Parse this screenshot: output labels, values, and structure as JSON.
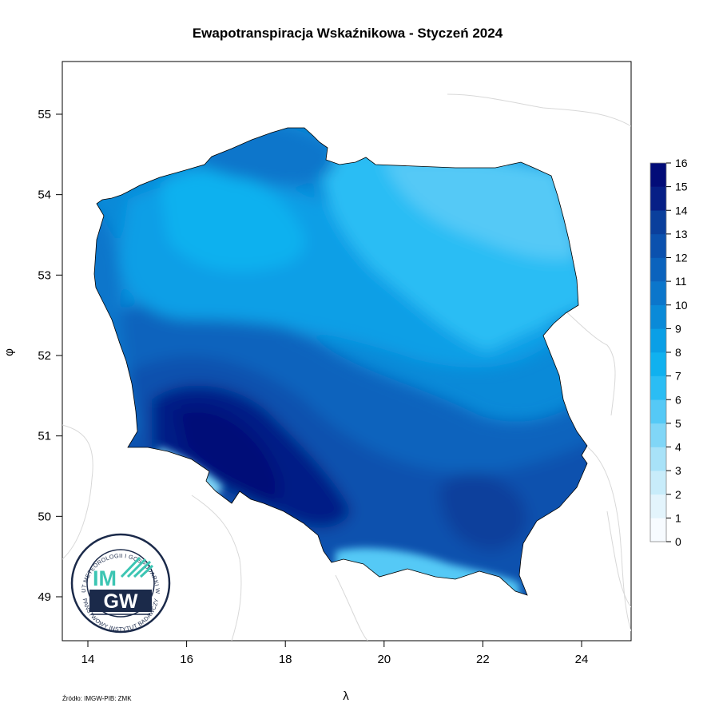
{
  "title": "Ewapotranspiracja Wskaźnikowa - Styczeń 2024",
  "source_note": "Źródło: IMGW-PIB: ZMK",
  "axes": {
    "xlabel": "λ",
    "ylabel": "φ",
    "x_ticks": [
      "14",
      "16",
      "18",
      "20",
      "22",
      "24"
    ],
    "y_ticks": [
      "49",
      "50",
      "51",
      "52",
      "53",
      "54",
      "55"
    ]
  },
  "legend": {
    "ticks": [
      "0",
      "1",
      "2",
      "3",
      "4",
      "5",
      "6",
      "7",
      "8",
      "9",
      "10",
      "11",
      "12",
      "13",
      "14",
      "15",
      "16"
    ],
    "class_colors": [
      "#f7fbff",
      "#e3f4fc",
      "#c8ecfa",
      "#a8e2f8",
      "#80d6f7",
      "#55c9f6",
      "#2bbdf4",
      "#10b1ef",
      "#0a9fe6",
      "#0a8ad8",
      "#0b76cb",
      "#0b63bd",
      "#0b51ae",
      "#0a3f9c",
      "#061f86",
      "#020c78"
    ]
  },
  "logo": {
    "ring_text_top": "INSTYTUT METEOROLOGII I GOSPODARKI WODNEJ",
    "ring_text_bottom": "PAŃSTWOWY INSTYTUT BADAWCZY",
    "letters_top": "IM",
    "letters_bottom": "GW",
    "colors": {
      "teal": "#3cc5b3",
      "navy": "#1b2a4a"
    }
  },
  "map": {
    "region": "Polska",
    "legend_placement": "right",
    "zones": [
      {
        "name": "north-east",
        "value_class": 6
      },
      {
        "name": "north-west lakes",
        "value_class": 8
      },
      {
        "name": "central",
        "value_class": 9
      },
      {
        "name": "south-central",
        "value_class": 11
      },
      {
        "name": "lower silesia",
        "value_class": 15
      },
      {
        "name": "south-east",
        "value_class": 13
      },
      {
        "name": "mountains",
        "value_class": 5
      }
    ]
  }
}
